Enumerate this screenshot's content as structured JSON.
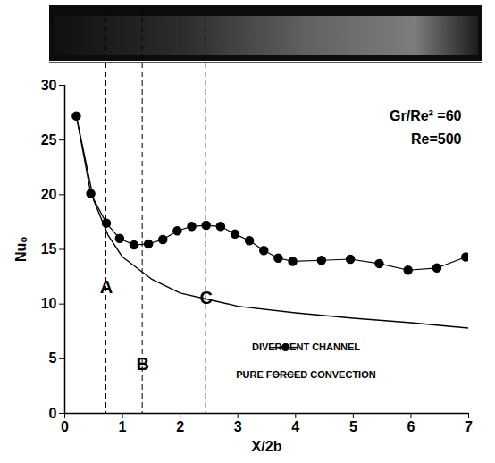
{
  "chart_data": {
    "type": "line",
    "x_label": "X/2b",
    "y_label": "Nuₒ",
    "xlim": [
      0,
      7
    ],
    "xticks": [
      0,
      1,
      2,
      3,
      4,
      5,
      6,
      7
    ],
    "ylim": [
      0,
      30
    ],
    "yticks": [
      0,
      5,
      10,
      15,
      20,
      25,
      30
    ],
    "grid": false,
    "legend": "bottom-right",
    "annotations": [
      "Gr/Re² =60",
      "Re=500"
    ],
    "vertical_lines": [
      {
        "label": "A",
        "x": 0.72,
        "y": 11.5
      },
      {
        "label": "B",
        "x": 1.35,
        "y": 4.5
      },
      {
        "label": "C",
        "x": 2.45,
        "y": 10.5
      }
    ],
    "series": [
      {
        "name": "DIVERGENT CHANNEL",
        "color": "#000000",
        "marker": "circle",
        "line_style": "solid",
        "x": [
          0.2,
          0.45,
          0.72,
          0.95,
          1.2,
          1.45,
          1.7,
          1.95,
          2.2,
          2.45,
          2.7,
          2.95,
          3.2,
          3.45,
          3.7,
          3.95,
          4.45,
          4.95,
          5.45,
          5.95,
          6.45,
          6.95
        ],
        "values": [
          27.2,
          20.1,
          17.4,
          16.0,
          15.4,
          15.5,
          15.9,
          16.7,
          17.1,
          17.2,
          17.1,
          16.4,
          15.8,
          14.9,
          14.2,
          13.9,
          14.0,
          14.1,
          13.7,
          13.1,
          13.3,
          14.3
        ]
      },
      {
        "name": "PURE FORCED CONVECTION",
        "color": "#000000",
        "marker": "none",
        "line_style": "solid",
        "x": [
          0.2,
          0.5,
          0.75,
          1.0,
          1.5,
          2.0,
          2.5,
          3.0,
          4.0,
          5.0,
          6.0,
          7.0
        ],
        "values": [
          27.2,
          19.5,
          16.3,
          14.3,
          12.3,
          11.0,
          10.4,
          9.8,
          9.2,
          8.7,
          8.3,
          7.8
        ]
      }
    ]
  }
}
